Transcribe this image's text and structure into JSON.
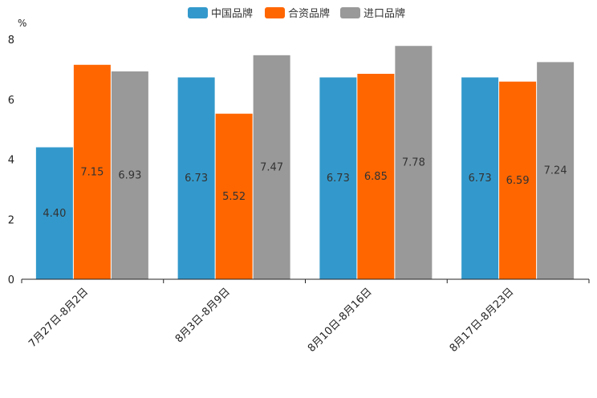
{
  "chart_data": {
    "type": "bar",
    "title": "",
    "unit_label": "%",
    "xlabel": "",
    "ylabel": "%",
    "ylim": [
      0,
      8
    ],
    "yticks": [
      0,
      2,
      4,
      6,
      8
    ],
    "grid": false,
    "legend_position": "top-center",
    "categories": [
      "7月27日-8月2日",
      "8月3日-8月9日",
      "8月10日-8月16日",
      "8月17日-8月23日"
    ],
    "series": [
      {
        "name": "中国品牌",
        "color": "#3399cc",
        "values": [
          4.4,
          6.73,
          6.73,
          6.73
        ],
        "labels": [
          "4.40",
          "6.73",
          "6.73",
          "6.73"
        ]
      },
      {
        "name": "合资品牌",
        "color": "#ff6600",
        "values": [
          7.15,
          5.52,
          6.85,
          6.59
        ],
        "labels": [
          "7.15",
          "5.52",
          "6.85",
          "6.59"
        ]
      },
      {
        "name": "进口品牌",
        "color": "#999999",
        "values": [
          6.93,
          7.47,
          7.78,
          7.24
        ],
        "labels": [
          "6.93",
          "7.47",
          "7.78",
          "7.24"
        ]
      }
    ]
  }
}
